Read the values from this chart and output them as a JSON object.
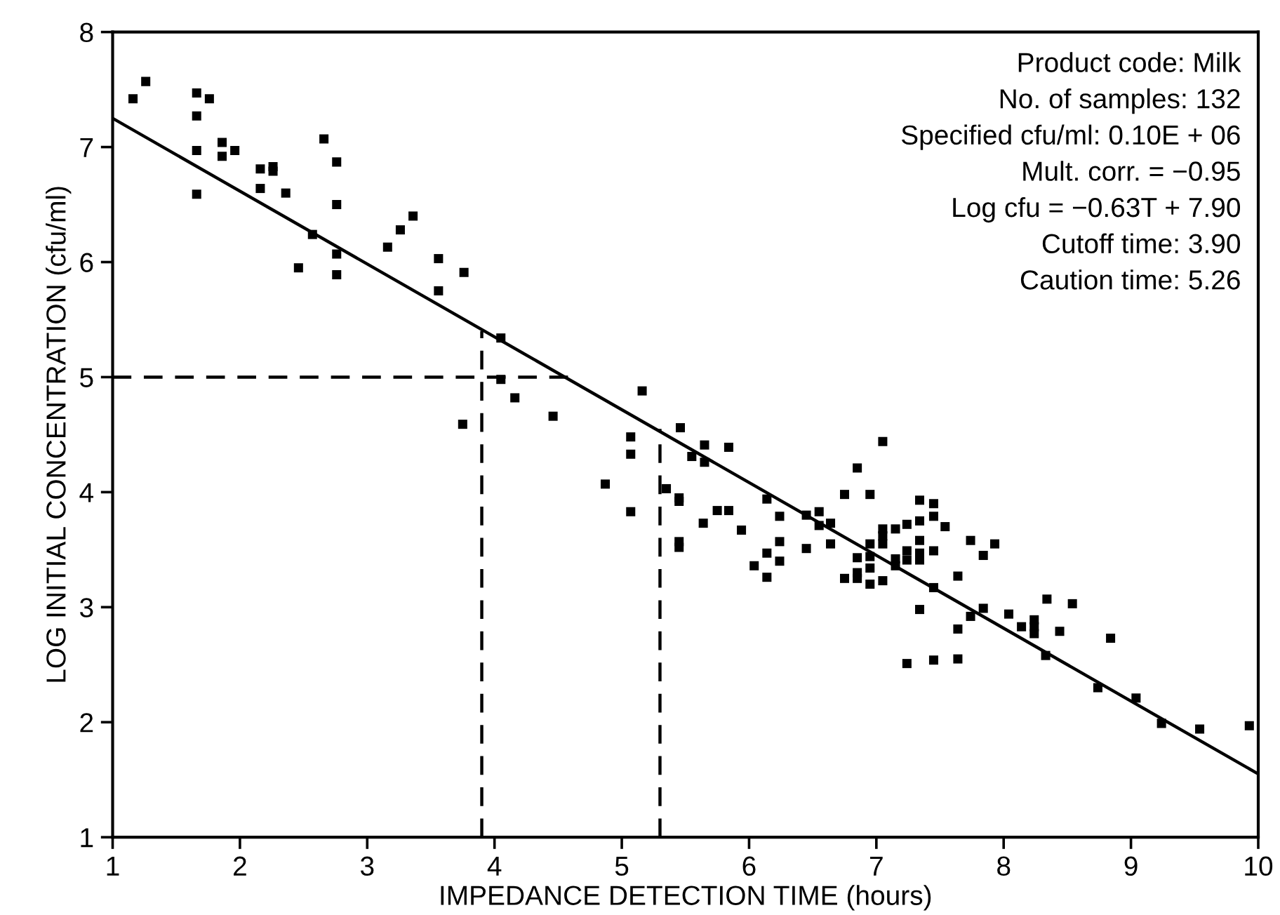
{
  "chart_data": {
    "type": "scatter",
    "xlabel": "IMPEDANCE DETECTION TIME (hours)",
    "ylabel": "LOG INITIAL CONCENTRATION (cfu/ml)",
    "xlim": [
      1,
      10
    ],
    "ylim": [
      1,
      8
    ],
    "xticks": [
      1,
      2,
      3,
      4,
      5,
      6,
      7,
      8,
      9,
      10
    ],
    "yticks": [
      1,
      2,
      3,
      4,
      5,
      6,
      7,
      8
    ],
    "grid": false,
    "legend": false,
    "annotations": [
      "Product code: Milk",
      "No. of samples: 132",
      "Specified cfu/ml: 0.10E + 06",
      "Mult. corr. = −0.95",
      "Log cfu = −0.63T + 7.90",
      "Cutoff time: 3.90",
      "Caution time: 5.26"
    ],
    "series": [
      {
        "type": "scatter",
        "color": "#000000",
        "marker": "square",
        "x": [
          1.16,
          1.26,
          1.66,
          1.76,
          1.66,
          1.66,
          1.66,
          1.86,
          1.86,
          1.96,
          2.16,
          2.26,
          2.26,
          2.16,
          2.36,
          2.66,
          2.76,
          2.76,
          2.57,
          2.76,
          2.46,
          2.76,
          3.16,
          3.26,
          3.36,
          3.56,
          3.56,
          3.76,
          4.05,
          4.05,
          4.16,
          4.46,
          3.75,
          5.16,
          5.07,
          5.07,
          4.87,
          5.07,
          5.46,
          5.65,
          5.84,
          5.55,
          5.65,
          5.35,
          5.45,
          5.45,
          5.45,
          5.45,
          5.75,
          5.84,
          5.64,
          5.94,
          6.14,
          6.24,
          6.24,
          6.24,
          6.14,
          6.04,
          6.14,
          6.45,
          6.55,
          6.55,
          6.64,
          6.64,
          6.45,
          6.75,
          6.85,
          6.95,
          7.05,
          7.34,
          7.45,
          7.45,
          7.34,
          7.24,
          7.15,
          7.05,
          7.05,
          7.05,
          6.95,
          6.95,
          6.85,
          6.95,
          6.85,
          6.75,
          6.85,
          6.95,
          7.05,
          7.15,
          7.15,
          7.24,
          7.24,
          7.34,
          7.34,
          7.34,
          7.45,
          7.54,
          7.45,
          7.34,
          7.64,
          7.74,
          7.93,
          7.84,
          7.64,
          7.74,
          7.84,
          8.04,
          8.14,
          8.24,
          8.24,
          8.24,
          8.34,
          8.44,
          8.54,
          8.84,
          8.33,
          8.74,
          9.04,
          9.24,
          9.54,
          9.93,
          7.24,
          7.45,
          7.64
        ],
        "values": [
          7.42,
          7.57,
          7.47,
          7.42,
          7.27,
          6.97,
          6.59,
          7.04,
          6.92,
          6.97,
          6.81,
          6.83,
          6.79,
          6.64,
          6.6,
          7.07,
          6.87,
          6.5,
          6.24,
          6.07,
          5.95,
          5.89,
          6.13,
          6.28,
          6.4,
          6.03,
          5.75,
          5.91,
          5.34,
          4.98,
          4.82,
          4.66,
          4.59,
          4.88,
          4.48,
          4.33,
          4.07,
          3.83,
          4.56,
          4.41,
          4.39,
          4.31,
          4.26,
          4.03,
          3.95,
          3.92,
          3.57,
          3.52,
          3.84,
          3.84,
          3.73,
          3.67,
          3.94,
          3.79,
          3.57,
          3.4,
          3.47,
          3.36,
          3.26,
          3.8,
          3.83,
          3.71,
          3.73,
          3.55,
          3.51,
          3.98,
          4.21,
          3.98,
          4.44,
          3.93,
          3.9,
          3.79,
          3.75,
          3.72,
          3.68,
          3.68,
          3.62,
          3.55,
          3.55,
          3.44,
          3.43,
          3.34,
          3.3,
          3.25,
          3.25,
          3.2,
          3.23,
          3.42,
          3.36,
          3.49,
          3.41,
          3.58,
          3.47,
          3.41,
          3.49,
          3.7,
          3.17,
          2.98,
          3.27,
          3.58,
          3.55,
          3.45,
          2.81,
          2.92,
          2.99,
          2.94,
          2.83,
          2.89,
          2.83,
          2.77,
          3.07,
          2.79,
          3.03,
          2.73,
          2.58,
          2.3,
          2.21,
          1.99,
          1.94,
          1.97,
          2.51,
          2.54,
          2.55
        ]
      },
      {
        "type": "line",
        "color": "#000000",
        "line_style": "solid",
        "x": [
          1,
          10
        ],
        "values": [
          7.25,
          1.55
        ]
      },
      {
        "type": "line",
        "color": "#000000",
        "line_style": "dashed",
        "x": [
          1,
          4.6
        ],
        "values": [
          5,
          5
        ]
      },
      {
        "type": "line",
        "color": "#000000",
        "line_style": "dashed",
        "x": [
          3.9,
          3.9
        ],
        "values": [
          1,
          5.4
        ]
      },
      {
        "type": "line",
        "color": "#000000",
        "line_style": "dashed",
        "x": [
          5.3,
          5.3
        ],
        "values": [
          1,
          4.55
        ]
      }
    ]
  }
}
